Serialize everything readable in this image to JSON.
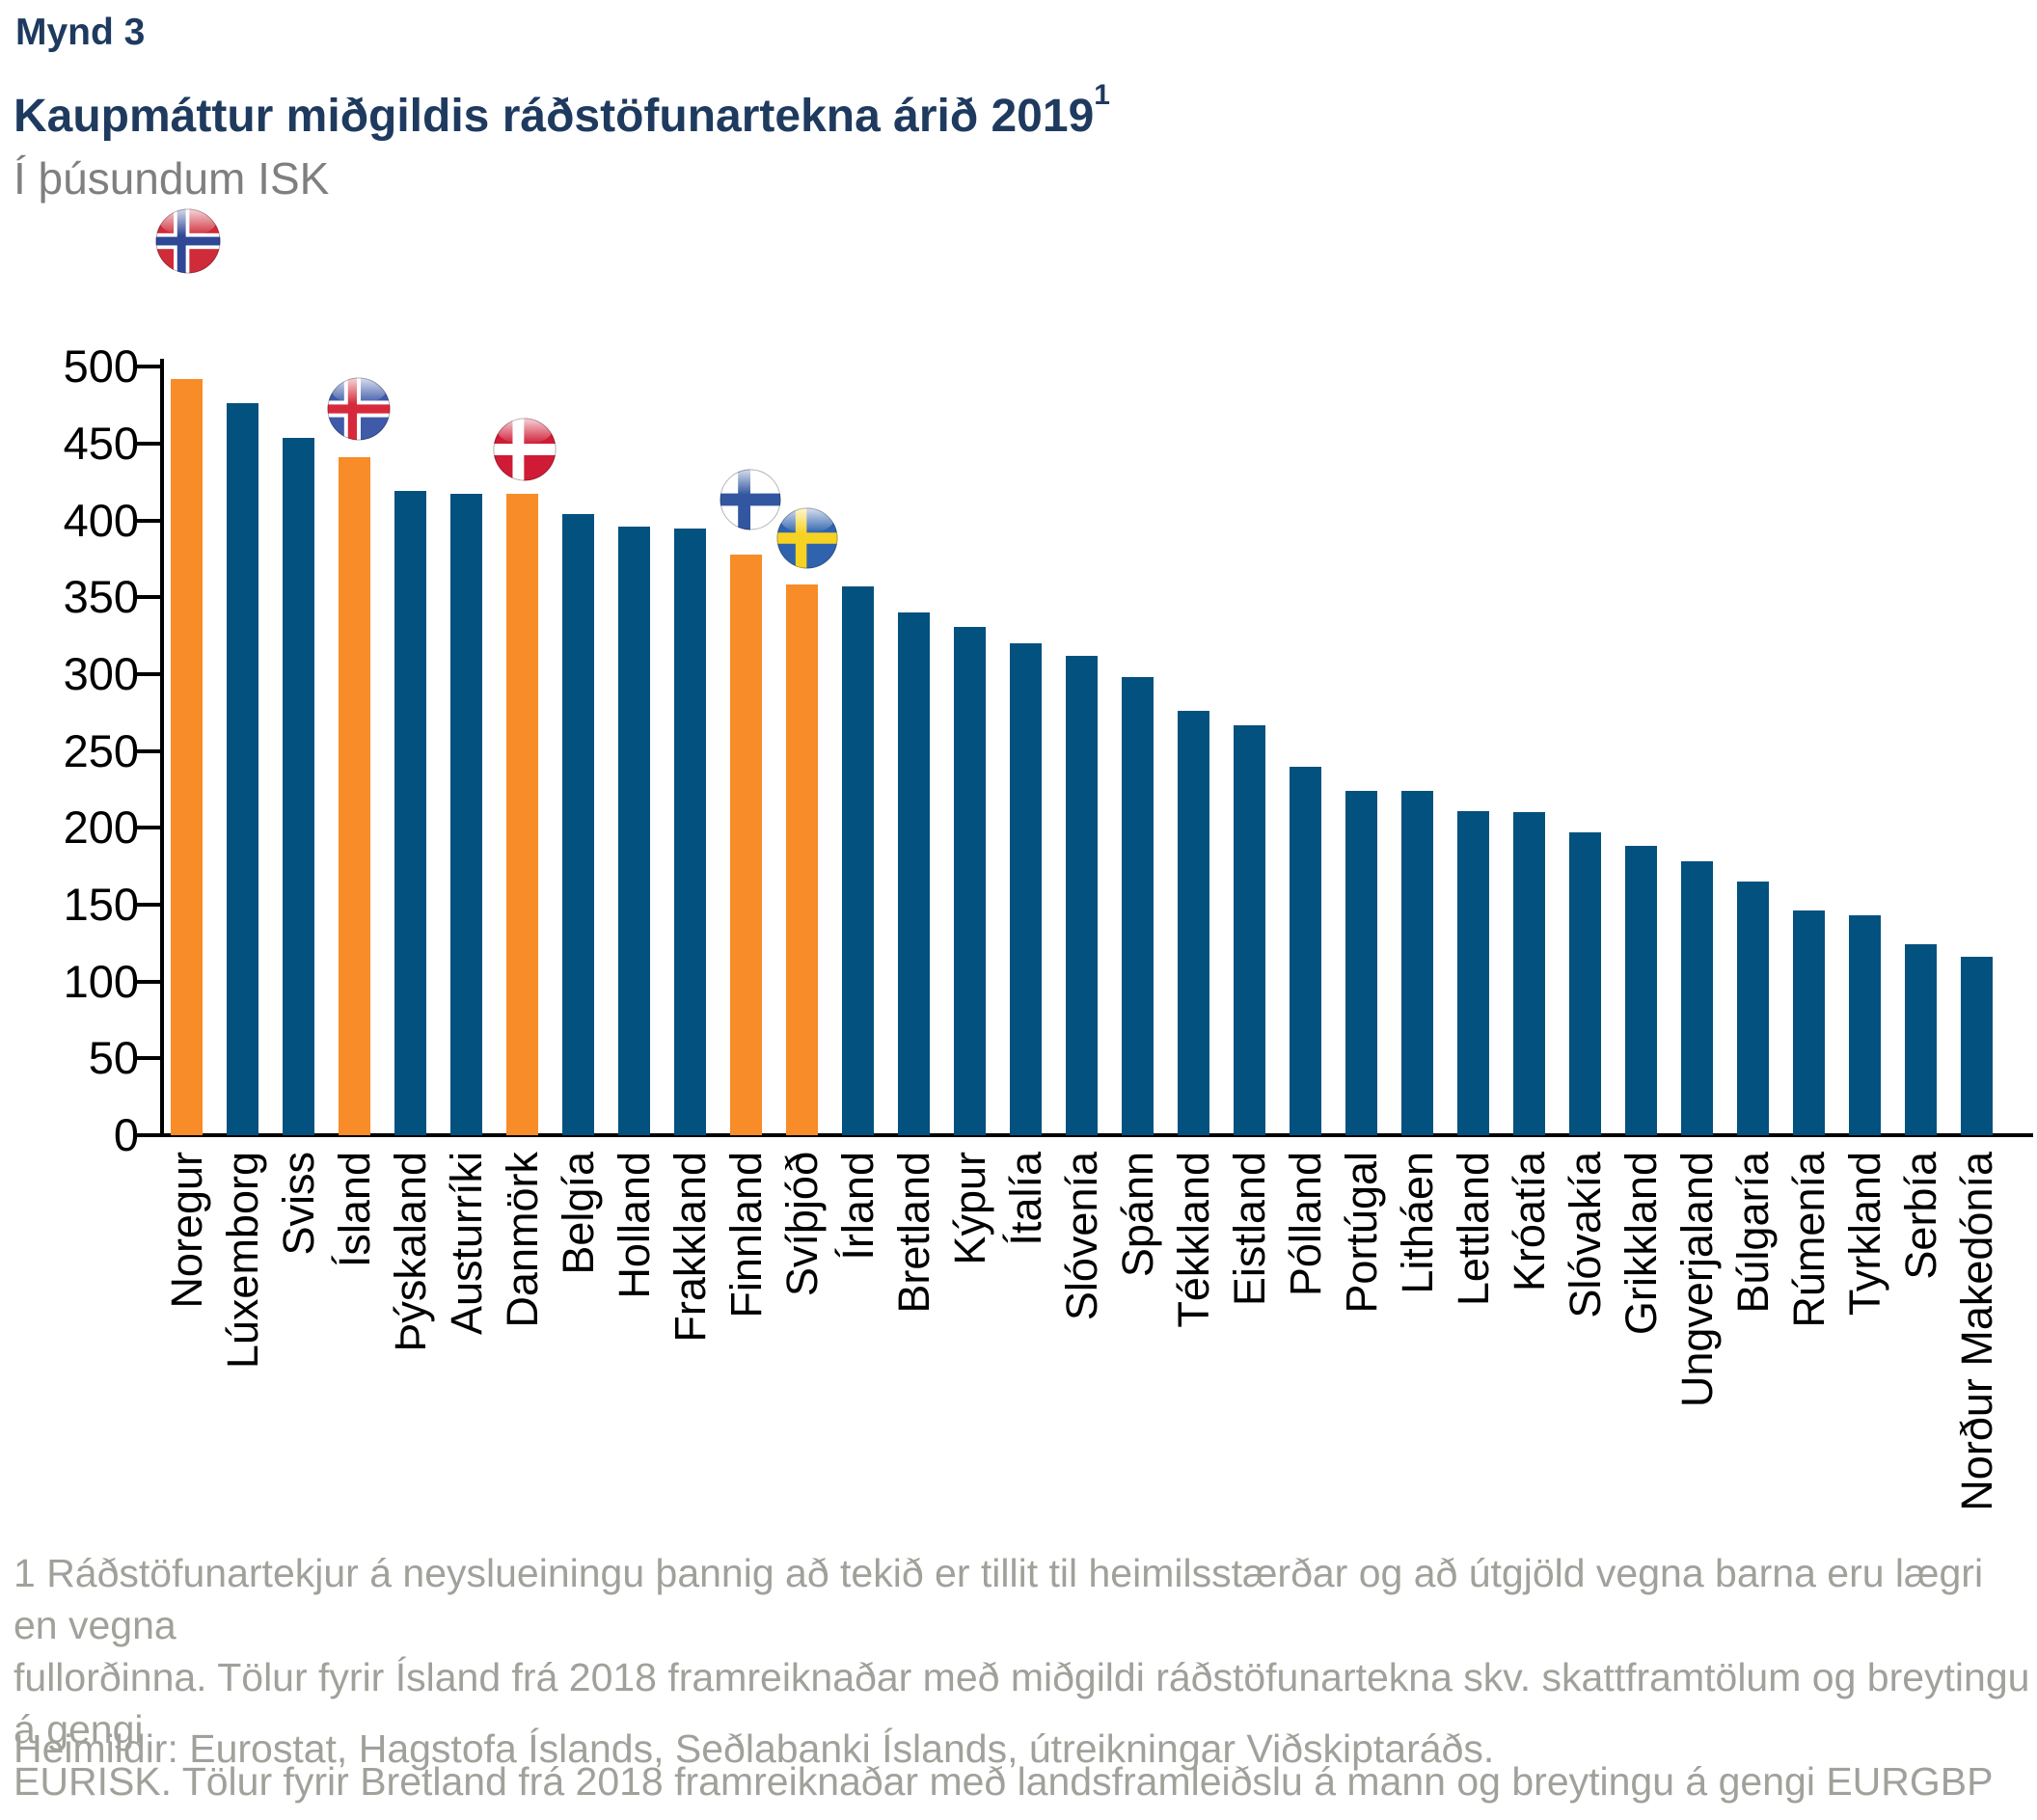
{
  "figure_label": "Mynd 3",
  "title": "Kaupmáttur miðgildis ráðstöfunartekna árið 2019",
  "title_superscript": "1",
  "subtitle": "Í þúsundum ISK",
  "footnote_lines": [
    "1 Ráðstöfunartekjur á neyslueiningu þannig að tekið er tillit til heimilsstærðar og að útgjöld vegna barna eru lægri en vegna",
    "fullorðinna. Tölur fyrir Ísland frá 2018 framreiknaðar með miðgildi ráðstöfunartekna skv. skattframtölum og breytingu á gengi",
    "EURISK. Tölur fyrir Bretland frá 2018 framreiknaðar með landsframleiðslu á mann og breytingu á gengi EURGBP"
  ],
  "source": "Heimildir: Eurostat, Hagstofa Íslands, Seðlabanki Íslands, útreikningar Viðskiptaráðs.",
  "colors": {
    "title_navy": "#1e3a5f",
    "subtitle_gray": "#7f7f7f",
    "footnote_gray": "#a1a19b",
    "bar_blue": "#02517f",
    "bar_orange": "#f88c28",
    "axis_black": "#000000"
  },
  "chart_data": {
    "type": "bar",
    "title": "Kaupmáttur miðgildis ráðstöfunartekna árið 2019",
    "ylabel": "Í þúsundum ISK",
    "xlabel": "",
    "ylim": [
      0,
      500
    ],
    "ytick_step": 50,
    "grid": false,
    "legend": "none",
    "categories": [
      "Noregur",
      "Lúxemborg",
      "Sviss",
      "Ísland",
      "Þýskaland",
      "Austurríki",
      "Danmörk",
      "Belgía",
      "Holland",
      "Frakkland",
      "Finnland",
      "Svíþjóð",
      "Írland",
      "Bretland",
      "Kýpur",
      "Ítalía",
      "Slóvenía",
      "Spánn",
      "Tékkland",
      "Eistland",
      "Pólland",
      "Portúgal",
      "Litháen",
      "Lettland",
      "Króatía",
      "Slóvakía",
      "Grikkland",
      "Ungverjaland",
      "Búlgaría",
      "Rúmenía",
      "Tyrkland",
      "Serbía",
      "Norður Makedónía"
    ],
    "values": [
      492,
      476,
      454,
      441,
      419,
      417,
      417,
      404,
      396,
      395,
      378,
      358,
      357,
      340,
      331,
      320,
      312,
      298,
      276,
      267,
      240,
      224,
      224,
      211,
      210,
      197,
      188,
      178,
      165,
      146,
      143,
      124,
      116
    ],
    "highlighted_categories": [
      "Noregur",
      "Ísland",
      "Danmörk",
      "Finnland",
      "Svíþjóð"
    ],
    "bar_color": "#02517f",
    "highlight_color": "#f88c28",
    "flags": [
      {
        "country": "Noregur",
        "icon": "norway-flag-icon"
      },
      {
        "country": "Ísland",
        "icon": "iceland-flag-icon"
      },
      {
        "country": "Danmörk",
        "icon": "denmark-flag-icon"
      },
      {
        "country": "Finnland",
        "icon": "finland-flag-icon"
      },
      {
        "country": "Svíþjóð",
        "icon": "sweden-flag-icon"
      }
    ]
  }
}
